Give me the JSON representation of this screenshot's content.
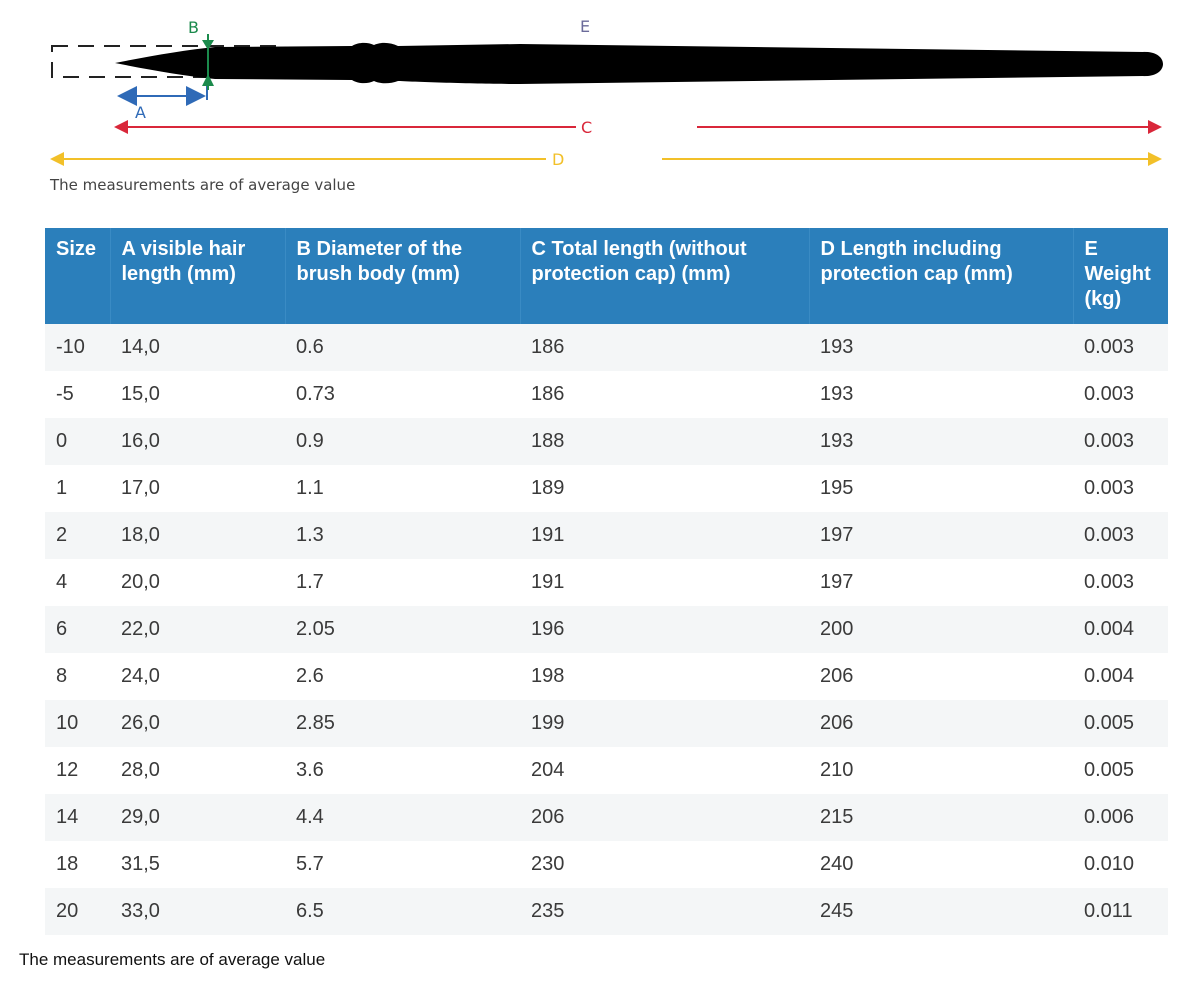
{
  "diagram": {
    "labels": {
      "a": "A",
      "b": "B",
      "c": "C",
      "d": "D",
      "e": "E"
    },
    "colors": {
      "a": "#2f6ab7",
      "b": "#1b8a4c",
      "c": "#d9273a",
      "d": "#f2c029",
      "e": "#6b6b9a",
      "brush": "#000000"
    },
    "caption": "The measurements are of average value"
  },
  "table": {
    "headers": [
      "Size",
      "A visible hair length (mm)",
      "B Diameter of the brush body (mm)",
      "C Total length (without protection cap) (mm)",
      "D Length including protection cap (mm)",
      "E Weight (kg)"
    ],
    "rows": [
      [
        "-10",
        "14,0",
        "0.6",
        "186",
        "193",
        "0.003"
      ],
      [
        "-5",
        "15,0",
        "0.73",
        "186",
        "193",
        "0.003"
      ],
      [
        "0",
        "16,0",
        "0.9",
        "188",
        "193",
        "0.003"
      ],
      [
        "1",
        "17,0",
        "1.1",
        "189",
        "195",
        "0.003"
      ],
      [
        "2",
        "18,0",
        "1.3",
        "191",
        "197",
        "0.003"
      ],
      [
        "4",
        "20,0",
        "1.7",
        "191",
        "197",
        "0.003"
      ],
      [
        "6",
        "22,0",
        "2.05",
        "196",
        "200",
        "0.004"
      ],
      [
        "8",
        "24,0",
        "2.6",
        "198",
        "206",
        "0.004"
      ],
      [
        "10",
        "26,0",
        "2.85",
        "199",
        "206",
        "0.005"
      ],
      [
        "12",
        "28,0",
        "3.6",
        "204",
        "210",
        "0.005"
      ],
      [
        "14",
        "29,0",
        "4.4",
        "206",
        "215",
        "0.006"
      ],
      [
        "18",
        "31,5",
        "5.7",
        "230",
        "240",
        "0.010"
      ],
      [
        "20",
        "33,0",
        "6.5",
        "235",
        "245",
        "0.011"
      ]
    ],
    "header_color": "#2b7fbb",
    "stripe_color": "#f4f6f7"
  },
  "footer_note": "The measurements are of average value"
}
